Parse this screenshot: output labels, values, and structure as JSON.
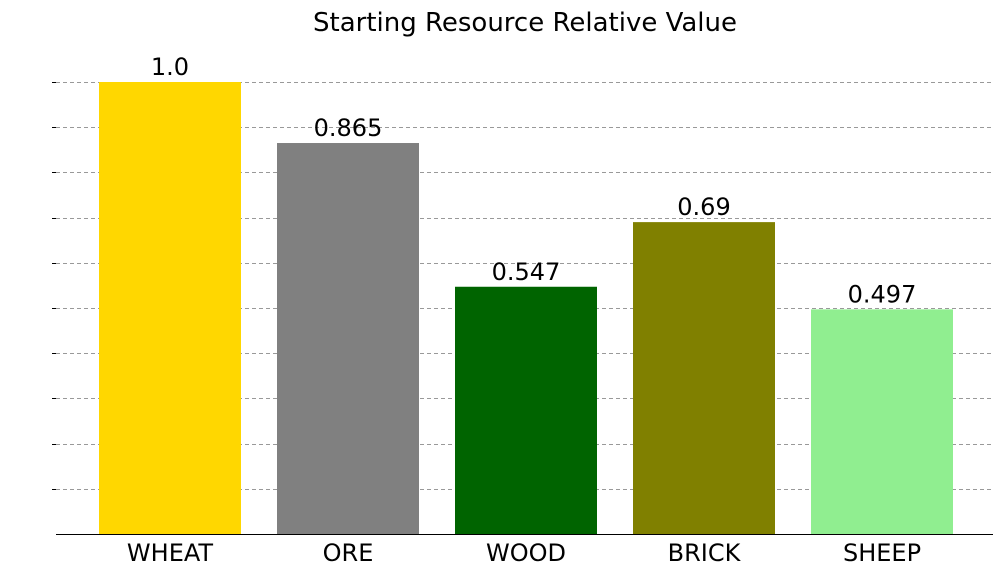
{
  "chart_data": {
    "type": "bar",
    "title": "Starting Resource Relative Value",
    "xlabel": "",
    "ylabel": "",
    "categories": [
      "WHEAT",
      "ORE",
      "WOOD",
      "BRICK",
      "SHEEP"
    ],
    "values": [
      1.0,
      0.865,
      0.547,
      0.69,
      0.497
    ],
    "value_labels": [
      "1.0",
      "0.865",
      "0.547",
      "0.69",
      "0.497"
    ],
    "colors": [
      "#ffd700",
      "#808080",
      "#006400",
      "#808000",
      "#90ee90"
    ],
    "ylim": [
      0,
      1.0
    ],
    "y_ticks": [
      0.1,
      0.2,
      0.3,
      0.4,
      0.5,
      0.6,
      0.7,
      0.8,
      0.9,
      1.0
    ],
    "y_tick_labels_visible": false,
    "grid": "y-dashed",
    "legend": "none"
  }
}
